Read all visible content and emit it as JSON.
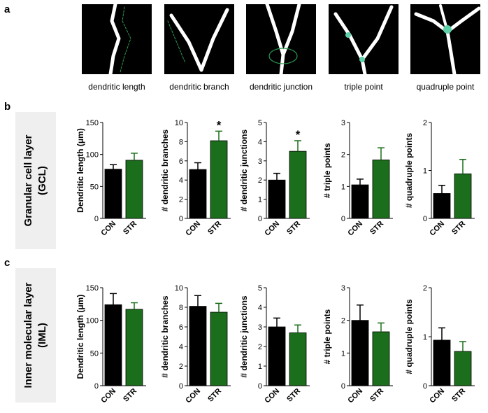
{
  "panel_labels": [
    "a",
    "b",
    "c"
  ],
  "image_captions": [
    "dendritic length",
    "dendritic branch",
    "dendritic junction",
    "triple point",
    "quadruple point"
  ],
  "row_labels": [
    [
      "Granular cell layer",
      "(GCL)"
    ],
    [
      "Inner molecular layer",
      "(IML)"
    ]
  ],
  "chart_data": [
    {
      "type": "bar",
      "y_label": "Dendritic length (μm)",
      "categories": [
        "CON",
        "STR"
      ],
      "values": [
        77,
        91
      ],
      "errors": [
        7,
        11
      ],
      "colors": [
        "#000000",
        "#1b6e1b"
      ],
      "ylim": [
        0,
        150
      ],
      "yticks": [
        0,
        50,
        100,
        150
      ],
      "significance": [
        null,
        null
      ]
    },
    {
      "type": "bar",
      "y_label": "# dendritic branches",
      "categories": [
        "CON",
        "STR"
      ],
      "values": [
        5.1,
        8.1
      ],
      "errors": [
        0.7,
        1.0
      ],
      "colors": [
        "#000000",
        "#1b6e1b"
      ],
      "ylim": [
        0,
        10
      ],
      "yticks": [
        0,
        2,
        4,
        6,
        8,
        10
      ],
      "significance": [
        null,
        "*"
      ]
    },
    {
      "type": "bar",
      "y_label": "# dendritic junctions",
      "categories": [
        "CON",
        "STR"
      ],
      "values": [
        2.0,
        3.5
      ],
      "errors": [
        0.35,
        0.55
      ],
      "colors": [
        "#000000",
        "#1b6e1b"
      ],
      "ylim": [
        0,
        5
      ],
      "yticks": [
        0,
        1,
        2,
        3,
        4,
        5
      ],
      "significance": [
        null,
        "*"
      ]
    },
    {
      "type": "bar",
      "y_label": "# triple points",
      "categories": [
        "CON",
        "STR"
      ],
      "values": [
        1.05,
        1.83
      ],
      "errors": [
        0.18,
        0.38
      ],
      "colors": [
        "#000000",
        "#1b6e1b"
      ],
      "ylim": [
        0,
        3
      ],
      "yticks": [
        0,
        1,
        2,
        3
      ],
      "significance": [
        null,
        null
      ]
    },
    {
      "type": "bar",
      "y_label": "# quadruple points",
      "categories": [
        "CON",
        "STR"
      ],
      "values": [
        0.52,
        0.93
      ],
      "errors": [
        0.17,
        0.3
      ],
      "colors": [
        "#000000",
        "#1b6e1b"
      ],
      "ylim": [
        0,
        2
      ],
      "yticks": [
        0,
        1,
        2
      ],
      "significance": [
        null,
        null
      ]
    },
    {
      "type": "bar",
      "y_label": "Dendritic length (μm)",
      "categories": [
        "CON",
        "STR"
      ],
      "values": [
        124,
        117
      ],
      "errors": [
        17,
        10
      ],
      "colors": [
        "#000000",
        "#1b6e1b"
      ],
      "ylim": [
        0,
        150
      ],
      "yticks": [
        0,
        50,
        100,
        150
      ],
      "significance": [
        null,
        null
      ]
    },
    {
      "type": "bar",
      "y_label": "# dendritic branches",
      "categories": [
        "CON",
        "STR"
      ],
      "values": [
        8.1,
        7.5
      ],
      "errors": [
        1.1,
        0.9
      ],
      "colors": [
        "#000000",
        "#1b6e1b"
      ],
      "ylim": [
        0,
        10
      ],
      "yticks": [
        0,
        2,
        4,
        6,
        8,
        10
      ],
      "significance": [
        null,
        null
      ]
    },
    {
      "type": "bar",
      "y_label": "# dendritic junctions",
      "categories": [
        "CON",
        "STR"
      ],
      "values": [
        3.0,
        2.7
      ],
      "errors": [
        0.45,
        0.4
      ],
      "colors": [
        "#000000",
        "#1b6e1b"
      ],
      "ylim": [
        0,
        5
      ],
      "yticks": [
        0,
        1,
        2,
        3,
        4,
        5
      ],
      "significance": [
        null,
        null
      ]
    },
    {
      "type": "bar",
      "y_label": "# triple points",
      "categories": [
        "CON",
        "STR"
      ],
      "values": [
        2.0,
        1.65
      ],
      "errors": [
        0.47,
        0.27
      ],
      "colors": [
        "#000000",
        "#1b6e1b"
      ],
      "ylim": [
        0,
        3
      ],
      "yticks": [
        0,
        1,
        2,
        3
      ],
      "significance": [
        null,
        null
      ]
    },
    {
      "type": "bar",
      "y_label": "# quadruple points",
      "categories": [
        "CON",
        "STR"
      ],
      "values": [
        0.93,
        0.7
      ],
      "errors": [
        0.25,
        0.2
      ],
      "colors": [
        "#000000",
        "#1b6e1b"
      ],
      "ylim": [
        0,
        2
      ],
      "yticks": [
        0,
        1,
        2
      ],
      "significance": [
        null,
        null
      ]
    }
  ]
}
